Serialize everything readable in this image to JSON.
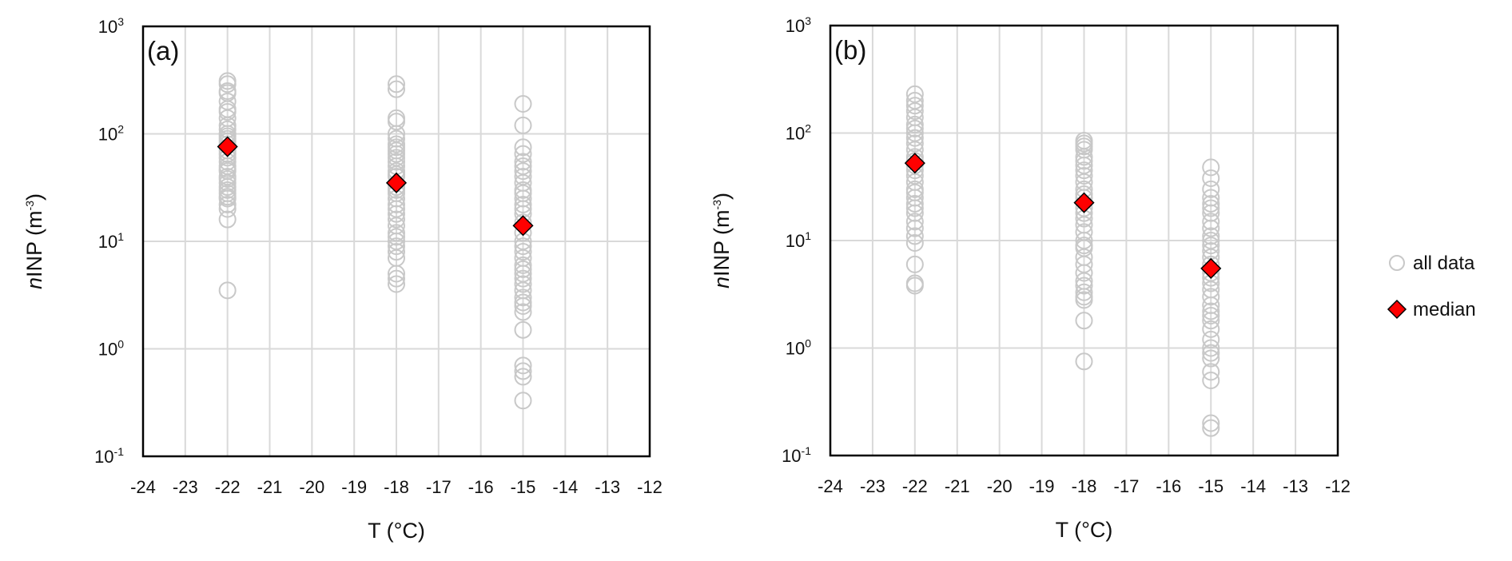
{
  "chart_data": [
    {
      "type": "scatter",
      "panel_label": "(a)",
      "xlabel": "T (°C)",
      "ylabel": {
        "italic": "n",
        "main": "INP (m",
        "sup": "-3",
        "end": ")"
      },
      "xlim": [
        -24,
        -12
      ],
      "ylim": [
        0.1,
        1000
      ],
      "yscale": "log",
      "grid": true,
      "xticks": [
        "-24",
        "-23",
        "-22",
        "-21",
        "-20",
        "-19",
        "-18",
        "-17",
        "-16",
        "-15",
        "-14",
        "-13",
        "-12"
      ],
      "yticks": [
        {
          "base": "10",
          "exp": "-1"
        },
        {
          "base": "10",
          "exp": "0"
        },
        {
          "base": "10",
          "exp": "1"
        },
        {
          "base": "10",
          "exp": "2"
        },
        {
          "base": "10",
          "exp": "3"
        }
      ],
      "series": [
        {
          "name": "all data",
          "points": [
            {
              "x": -22,
              "y": [
                310,
                290,
                250,
                240,
                200,
                170,
                160,
                140,
                120,
                110,
                100,
                95,
                90,
                85,
                80,
                70,
                65,
                60,
                55,
                50,
                47,
                45,
                40,
                38,
                35,
                32,
                30,
                28,
                26,
                25,
                22,
                20,
                16,
                3.5
              ]
            },
            {
              "x": -18,
              "y": [
                290,
                260,
                140,
                130,
                100,
                90,
                80,
                75,
                70,
                65,
                60,
                55,
                50,
                45,
                42,
                40,
                32,
                30,
                28,
                25,
                22,
                20,
                18,
                16,
                14,
                12,
                11,
                10,
                9,
                8,
                7,
                5,
                4.5,
                4
              ]
            },
            {
              "x": -15,
              "y": [
                190,
                120,
                75,
                65,
                55,
                50,
                45,
                40,
                35,
                30,
                28,
                25,
                22,
                20,
                18,
                15,
                12,
                10,
                9,
                8,
                7,
                6,
                5.5,
                5,
                4.5,
                4,
                3.5,
                3,
                2.7,
                2.5,
                2.2,
                1.5,
                0.7,
                0.62,
                0.55,
                0.33
              ]
            }
          ]
        },
        {
          "name": "median",
          "points": [
            {
              "x": -22,
              "y": 76
            },
            {
              "x": -18,
              "y": 35
            },
            {
              "x": -15,
              "y": 14
            }
          ]
        }
      ]
    },
    {
      "type": "scatter",
      "panel_label": "(b)",
      "xlabel": "T (°C)",
      "ylabel": {
        "italic": "n",
        "main": "INP (m",
        "sup": "-3",
        "end": ")"
      },
      "xlim": [
        -24,
        -12
      ],
      "ylim": [
        0.1,
        1000
      ],
      "yscale": "log",
      "grid": true,
      "xticks": [
        "-24",
        "-23",
        "-22",
        "-21",
        "-20",
        "-19",
        "-18",
        "-17",
        "-16",
        "-15",
        "-14",
        "-13",
        "-12"
      ],
      "yticks": [
        {
          "base": "10",
          "exp": "-1"
        },
        {
          "base": "10",
          "exp": "0"
        },
        {
          "base": "10",
          "exp": "1"
        },
        {
          "base": "10",
          "exp": "2"
        },
        {
          "base": "10",
          "exp": "3"
        }
      ],
      "series": [
        {
          "name": "all data",
          "points": [
            {
              "x": -22,
              "y": [
                230,
                200,
                180,
                160,
                140,
                120,
                110,
                100,
                90,
                80,
                70,
                60,
                55,
                50,
                45,
                40,
                35,
                30,
                28,
                25,
                22,
                20,
                18,
                15,
                13,
                11,
                9.5,
                6,
                4,
                3.8
              ]
            },
            {
              "x": -18,
              "y": [
                85,
                80,
                75,
                70,
                60,
                55,
                50,
                45,
                40,
                35,
                30,
                27,
                25,
                20,
                18,
                16,
                14,
                12,
                10,
                9,
                8.5,
                7,
                6,
                5,
                4.2,
                3.8,
                3.3,
                3,
                2.8,
                1.8,
                0.75
              ]
            },
            {
              "x": -15,
              "y": [
                48,
                38,
                30,
                25,
                22,
                20,
                18,
                15,
                13,
                11,
                10,
                9,
                8,
                7,
                6,
                5,
                4.5,
                4,
                3.5,
                3,
                2.5,
                2.2,
                2,
                1.8,
                1.5,
                1.2,
                1.0,
                0.9,
                0.8,
                0.6,
                0.5,
                0.2,
                0.18
              ]
            }
          ]
        },
        {
          "name": "median",
          "points": [
            {
              "x": -22,
              "y": 52.5
            },
            {
              "x": -18,
              "y": 22.5
            },
            {
              "x": -15,
              "y": 5.5
            }
          ]
        }
      ]
    }
  ],
  "legend": {
    "placement": "right",
    "items": [
      {
        "label": "all data",
        "marker": "circle"
      },
      {
        "label": "median",
        "marker": "diamond"
      }
    ]
  },
  "colors": {
    "all_data": "#c8c8c8",
    "median_fill": "#ff0000",
    "median_edge": "#000000",
    "grid": "#d9d9d9",
    "axis": "#000000"
  }
}
